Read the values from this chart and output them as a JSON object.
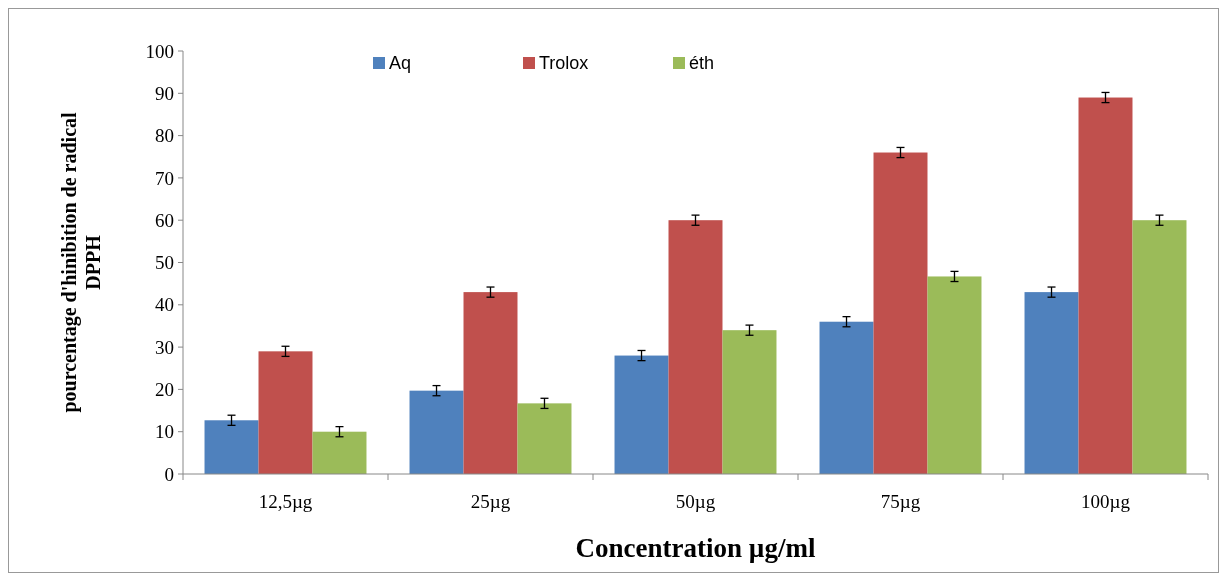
{
  "chart_data": {
    "type": "bar",
    "xlabel": "Concentration µg/ml",
    "ylabel": "pourcentage d'hinibition de radical\nDPPH",
    "categories": [
      "12,5µg",
      "25µg",
      "50µg",
      "75µg",
      "100µg"
    ],
    "series": [
      {
        "name": "Aq",
        "color": "#4f81bd",
        "values": [
          12.7,
          19.7,
          28,
          36,
          43
        ],
        "errors": [
          1.2,
          1.2,
          1.2,
          1.2,
          1.2
        ]
      },
      {
        "name": "Trolox",
        "color": "#c0504d",
        "values": [
          29,
          43,
          60,
          76,
          89
        ],
        "errors": [
          1.2,
          1.2,
          1.2,
          1.2,
          1.2
        ]
      },
      {
        "name": "éth",
        "color": "#9bbb59",
        "values": [
          10,
          16.7,
          34,
          46.7,
          60
        ],
        "errors": [
          1.2,
          1.2,
          1.2,
          1.2,
          1.2
        ]
      }
    ],
    "ylim": [
      0,
      100
    ],
    "yticks": [
      0,
      10,
      20,
      30,
      40,
      50,
      60,
      70,
      80,
      90,
      100
    ],
    "grid": false,
    "legend": "top"
  }
}
